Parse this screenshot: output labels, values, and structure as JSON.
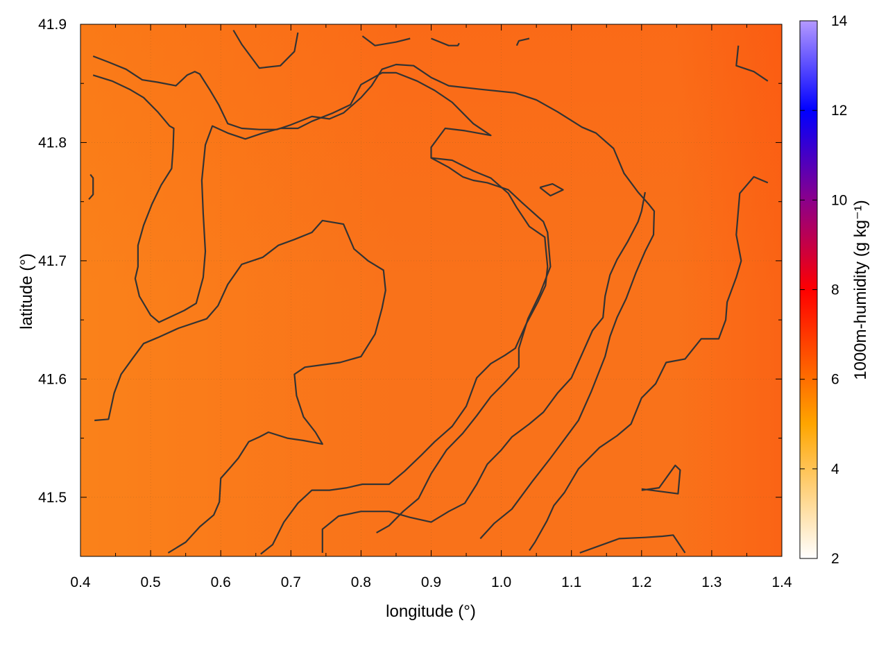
{
  "chart_data": {
    "type": "heatmap",
    "xlabel": "longitude (°)",
    "ylabel": "latitude (°)",
    "colorbar_label": "1000m-humidity (g kg⁻¹)",
    "xlim": [
      0.4,
      1.4
    ],
    "ylim": [
      41.45,
      41.9
    ],
    "x_ticks": [
      {
        "value": 0.4,
        "label": "0.4"
      },
      {
        "value": 0.5,
        "label": "0.5"
      },
      {
        "value": 0.6,
        "label": "0.6"
      },
      {
        "value": 0.7,
        "label": "0.7"
      },
      {
        "value": 0.8,
        "label": "0.8"
      },
      {
        "value": 0.9,
        "label": "0.9"
      },
      {
        "value": 1.0,
        "label": "1.0"
      },
      {
        "value": 1.1,
        "label": "1.1"
      },
      {
        "value": 1.2,
        "label": "1.2"
      },
      {
        "value": 1.3,
        "label": "1.3"
      },
      {
        "value": 1.4,
        "label": "1.4"
      }
    ],
    "y_ticks": [
      {
        "value": 41.5,
        "label": "41.5"
      },
      {
        "value": 41.6,
        "label": "41.6"
      },
      {
        "value": 41.7,
        "label": "41.7"
      },
      {
        "value": 41.8,
        "label": "41.8"
      },
      {
        "value": 41.9,
        "label": "41.9"
      }
    ],
    "colorbar": {
      "range": [
        2,
        14
      ],
      "ticks": [
        {
          "value": 2,
          "label": "2"
        },
        {
          "value": 4,
          "label": "4"
        },
        {
          "value": 6,
          "label": "6"
        },
        {
          "value": 8,
          "label": "8"
        },
        {
          "value": 10,
          "label": "10"
        },
        {
          "value": 12,
          "label": "12"
        },
        {
          "value": 14,
          "label": "14"
        }
      ],
      "stops": [
        {
          "value": 2,
          "color": "#ffffff"
        },
        {
          "value": 5,
          "color": "#ffa500"
        },
        {
          "value": 8,
          "color": "#ff0000"
        },
        {
          "value": 10,
          "color": "#8b008b"
        },
        {
          "value": 12,
          "color": "#0000ff"
        },
        {
          "value": 14,
          "color": "#b499ff"
        }
      ]
    },
    "grid": true,
    "contour_color": "#333333",
    "field_colors": {
      "drier": "#fa8a1a",
      "base": "#f9721a",
      "moister": "#fb5c12"
    },
    "contours": [
      [
        [
          0.418,
          41.873
        ],
        [
          0.44,
          41.868
        ],
        [
          0.465,
          41.862
        ],
        [
          0.488,
          41.853
        ],
        [
          0.51,
          41.851
        ],
        [
          0.536,
          41.848
        ],
        [
          0.552,
          41.857
        ],
        [
          0.563,
          41.86
        ],
        [
          0.57,
          41.858
        ],
        [
          0.585,
          41.844
        ],
        [
          0.597,
          41.832
        ],
        [
          0.61,
          41.816
        ],
        [
          0.63,
          41.812
        ],
        [
          0.655,
          41.811
        ],
        [
          0.68,
          41.811
        ],
        [
          0.7,
          41.815
        ],
        [
          0.73,
          41.822
        ],
        [
          0.755,
          41.82
        ],
        [
          0.775,
          41.825
        ],
        [
          0.8,
          41.838
        ],
        [
          0.815,
          41.848
        ],
        [
          0.83,
          41.862
        ],
        [
          0.85,
          41.866
        ],
        [
          0.875,
          41.865
        ],
        [
          0.9,
          41.855
        ],
        [
          0.925,
          41.848
        ],
        [
          0.97,
          41.845
        ],
        [
          1.02,
          41.842
        ],
        [
          1.05,
          41.836
        ],
        [
          1.08,
          41.826
        ],
        [
          1.115,
          41.813
        ],
        [
          1.135,
          41.808
        ],
        [
          1.16,
          41.795
        ],
        [
          1.175,
          41.774
        ],
        [
          1.195,
          41.758
        ],
        [
          1.21,
          41.748
        ],
        [
          1.218,
          41.742
        ],
        [
          1.217,
          41.722
        ],
        [
          1.205,
          41.708
        ],
        [
          1.192,
          41.69
        ],
        [
          1.178,
          41.668
        ],
        [
          1.165,
          41.652
        ],
        [
          1.155,
          41.636
        ],
        [
          1.148,
          41.619
        ],
        [
          1.128,
          41.589
        ],
        [
          1.11,
          41.565
        ],
        [
          1.09,
          41.549
        ],
        [
          1.07,
          41.533
        ],
        [
          1.045,
          41.514
        ],
        [
          1.015,
          41.49
        ],
        [
          0.99,
          41.478
        ],
        [
          0.97,
          41.465
        ]
      ],
      [
        [
          0.418,
          41.857
        ],
        [
          0.445,
          41.852
        ],
        [
          0.47,
          41.845
        ],
        [
          0.49,
          41.838
        ],
        [
          0.51,
          41.826
        ],
        [
          0.527,
          41.814
        ],
        [
          0.533,
          41.812
        ],
        [
          0.532,
          41.795
        ],
        [
          0.53,
          41.778
        ],
        [
          0.515,
          41.764
        ],
        [
          0.502,
          41.748
        ],
        [
          0.49,
          41.73
        ],
        [
          0.482,
          41.713
        ],
        [
          0.482,
          41.695
        ],
        [
          0.478,
          41.685
        ],
        [
          0.484,
          41.67
        ],
        [
          0.5,
          41.654
        ],
        [
          0.512,
          41.648
        ],
        [
          0.53,
          41.653
        ],
        [
          0.548,
          41.658
        ],
        [
          0.565,
          41.664
        ],
        [
          0.575,
          41.686
        ],
        [
          0.578,
          41.708
        ],
        [
          0.575,
          41.74
        ],
        [
          0.573,
          41.768
        ],
        [
          0.578,
          41.798
        ],
        [
          0.588,
          41.814
        ],
        [
          0.61,
          41.808
        ],
        [
          0.635,
          41.803
        ],
        [
          0.66,
          41.808
        ],
        [
          0.685,
          41.812
        ],
        [
          0.71,
          41.812
        ],
        [
          0.73,
          41.818
        ],
        [
          0.76,
          41.825
        ],
        [
          0.785,
          41.832
        ],
        [
          0.8,
          41.849
        ],
        [
          0.83,
          41.859
        ],
        [
          0.85,
          41.859
        ],
        [
          0.88,
          41.852
        ],
        [
          0.905,
          41.844
        ],
        [
          0.93,
          41.834
        ],
        [
          0.96,
          41.816
        ],
        [
          0.985,
          41.806
        ],
        [
          0.948,
          41.81
        ],
        [
          0.92,
          41.812
        ],
        [
          0.9,
          41.796
        ],
        [
          0.9,
          41.787
        ],
        [
          0.925,
          41.779
        ],
        [
          0.945,
          41.771
        ],
        [
          0.96,
          41.768
        ],
        [
          0.98,
          41.766
        ],
        [
          1.01,
          41.76
        ],
        [
          1.03,
          41.749
        ],
        [
          1.045,
          41.741
        ],
        [
          1.06,
          41.733
        ],
        [
          1.066,
          41.724
        ],
        [
          1.07,
          41.695
        ],
        [
          1.055,
          41.672
        ],
        [
          1.038,
          41.651
        ],
        [
          1.025,
          41.626
        ],
        [
          1.025,
          41.61
        ],
        [
          1.005,
          41.597
        ],
        [
          0.985,
          41.585
        ],
        [
          0.965,
          41.569
        ],
        [
          0.945,
          41.554
        ],
        [
          0.922,
          41.54
        ],
        [
          0.9,
          41.52
        ],
        [
          0.882,
          41.499
        ],
        [
          0.86,
          41.488
        ],
        [
          0.84,
          41.476
        ],
        [
          0.822,
          41.47
        ]
      ],
      [
        [
          1.055,
          41.762
        ],
        [
          1.073,
          41.765
        ],
        [
          1.088,
          41.76
        ],
        [
          1.07,
          41.755
        ],
        [
          1.055,
          41.762
        ]
      ],
      [
        [
          0.412,
          41.752
        ],
        [
          0.418,
          41.756
        ],
        [
          0.418,
          41.77
        ],
        [
          0.414,
          41.773
        ]
      ],
      [
        [
          0.42,
          41.565
        ],
        [
          0.44,
          41.566
        ],
        [
          0.448,
          41.588
        ],
        [
          0.458,
          41.604
        ],
        [
          0.475,
          41.618
        ],
        [
          0.49,
          41.63
        ],
        [
          0.51,
          41.635
        ],
        [
          0.54,
          41.643
        ],
        [
          0.58,
          41.651
        ],
        [
          0.596,
          41.662
        ],
        [
          0.61,
          41.68
        ],
        [
          0.63,
          41.697
        ],
        [
          0.66,
          41.703
        ],
        [
          0.682,
          41.713
        ],
        [
          0.705,
          41.718
        ],
        [
          0.73,
          41.724
        ],
        [
          0.745,
          41.734
        ],
        [
          0.775,
          41.731
        ],
        [
          0.79,
          41.71
        ],
        [
          0.81,
          41.7
        ],
        [
          0.832,
          41.692
        ],
        [
          0.835,
          41.675
        ],
        [
          0.83,
          41.66
        ],
        [
          0.82,
          41.638
        ],
        [
          0.8,
          41.619
        ],
        [
          0.77,
          41.614
        ],
        [
          0.745,
          41.612
        ],
        [
          0.72,
          41.61
        ],
        [
          0.705,
          41.604
        ],
        [
          0.708,
          41.586
        ],
        [
          0.718,
          41.568
        ],
        [
          0.735,
          41.555
        ],
        [
          0.745,
          41.545
        ],
        [
          0.718,
          41.548
        ],
        [
          0.695,
          41.55
        ],
        [
          0.668,
          41.555
        ],
        [
          0.655,
          41.551
        ],
        [
          0.64,
          41.547
        ],
        [
          0.625,
          41.533
        ],
        [
          0.612,
          41.524
        ],
        [
          0.6,
          41.516
        ],
        [
          0.598,
          41.496
        ],
        [
          0.59,
          41.485
        ],
        [
          0.57,
          41.475
        ],
        [
          0.55,
          41.462
        ],
        [
          0.525,
          41.453
        ]
      ],
      [
        [
          0.657,
          41.452
        ],
        [
          0.674,
          41.46
        ],
        [
          0.69,
          41.479
        ],
        [
          0.71,
          41.495
        ],
        [
          0.73,
          41.506
        ],
        [
          0.755,
          41.506
        ],
        [
          0.78,
          41.508
        ],
        [
          0.802,
          41.511
        ],
        [
          0.84,
          41.511
        ],
        [
          0.862,
          41.522
        ],
        [
          0.885,
          41.535
        ],
        [
          0.905,
          41.547
        ],
        [
          0.93,
          41.56
        ],
        [
          0.95,
          41.577
        ],
        [
          0.965,
          41.601
        ],
        [
          0.985,
          41.613
        ],
        [
          1.005,
          41.62
        ],
        [
          1.02,
          41.626
        ],
        [
          1.035,
          41.646
        ],
        [
          1.052,
          41.665
        ],
        [
          1.063,
          41.679
        ],
        [
          1.066,
          41.695
        ],
        [
          1.063,
          41.713
        ],
        [
          1.062,
          41.72
        ],
        [
          1.04,
          41.729
        ],
        [
          1.022,
          41.745
        ],
        [
          1.01,
          41.757
        ],
        [
          0.985,
          41.77
        ],
        [
          0.96,
          41.776
        ],
        [
          0.93,
          41.785
        ],
        [
          0.9,
          41.787
        ]
      ],
      [
        [
          0.745,
          41.453
        ],
        [
          0.745,
          41.473
        ],
        [
          0.768,
          41.484
        ],
        [
          0.8,
          41.488
        ],
        [
          0.84,
          41.488
        ],
        [
          0.87,
          41.483
        ],
        [
          0.9,
          41.479
        ],
        [
          0.925,
          41.488
        ],
        [
          0.948,
          41.495
        ],
        [
          0.965,
          41.511
        ],
        [
          0.98,
          41.528
        ],
        [
          1.0,
          41.54
        ],
        [
          1.015,
          41.551
        ],
        [
          1.04,
          41.562
        ],
        [
          1.06,
          41.572
        ],
        [
          1.08,
          41.588
        ],
        [
          1.1,
          41.601
        ],
        [
          1.115,
          41.621
        ],
        [
          1.13,
          41.641
        ],
        [
          1.145,
          41.652
        ],
        [
          1.148,
          41.67
        ],
        [
          1.155,
          41.688
        ],
        [
          1.165,
          41.701
        ],
        [
          1.18,
          41.716
        ],
        [
          1.195,
          41.733
        ],
        [
          1.2,
          41.742
        ],
        [
          1.205,
          41.758
        ]
      ],
      [
        [
          0.618,
          41.895
        ],
        [
          0.63,
          41.883
        ],
        [
          0.655,
          41.863
        ],
        [
          0.685,
          41.865
        ],
        [
          0.705,
          41.877
        ],
        [
          0.71,
          41.893
        ]
      ],
      [
        [
          0.802,
          41.89
        ],
        [
          0.82,
          41.882
        ],
        [
          0.85,
          41.885
        ],
        [
          0.87,
          41.888
        ]
      ],
      [
        [
          0.9,
          41.888
        ],
        [
          0.925,
          41.882
        ],
        [
          0.938,
          41.882
        ],
        [
          0.94,
          41.884
        ]
      ],
      [
        [
          1.022,
          41.882
        ],
        [
          1.025,
          41.886
        ],
        [
          1.04,
          41.888
        ]
      ],
      [
        [
          1.338,
          41.882
        ],
        [
          1.335,
          41.865
        ],
        [
          1.36,
          41.86
        ],
        [
          1.38,
          41.852
        ]
      ],
      [
        [
          1.38,
          41.766
        ],
        [
          1.36,
          41.771
        ],
        [
          1.34,
          41.757
        ],
        [
          1.335,
          41.722
        ],
        [
          1.342,
          41.7
        ],
        [
          1.335,
          41.686
        ],
        [
          1.322,
          41.665
        ],
        [
          1.32,
          41.65
        ],
        [
          1.31,
          41.634
        ],
        [
          1.285,
          41.634
        ],
        [
          1.262,
          41.617
        ],
        [
          1.235,
          41.614
        ],
        [
          1.22,
          41.596
        ],
        [
          1.2,
          41.584
        ],
        [
          1.185,
          41.562
        ],
        [
          1.165,
          41.552
        ],
        [
          1.14,
          41.542
        ],
        [
          1.11,
          41.524
        ],
        [
          1.09,
          41.504
        ],
        [
          1.075,
          41.493
        ],
        [
          1.065,
          41.48
        ],
        [
          1.048,
          41.462
        ],
        [
          1.04,
          41.455
        ]
      ],
      [
        [
          1.2,
          41.506
        ],
        [
          1.225,
          41.508
        ],
        [
          1.248,
          41.527
        ],
        [
          1.255,
          41.523
        ],
        [
          1.252,
          41.503
        ],
        [
          1.2,
          41.507
        ]
      ],
      [
        [
          1.112,
          41.453
        ],
        [
          1.14,
          41.459
        ],
        [
          1.168,
          41.465
        ],
        [
          1.205,
          41.466
        ],
        [
          1.23,
          41.467
        ],
        [
          1.245,
          41.468
        ],
        [
          1.262,
          41.453
        ]
      ]
    ]
  }
}
